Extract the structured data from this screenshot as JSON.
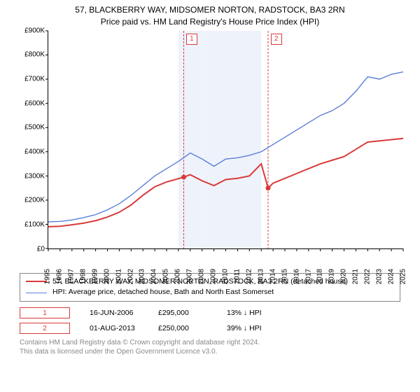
{
  "title": {
    "line1": "57, BLACKBERRY WAY, MIDSOMER NORTON, RADSTOCK, BA3 2RN",
    "line2": "Price paid vs. HM Land Registry's House Price Index (HPI)",
    "fontsize": 12,
    "color": "#000000"
  },
  "chart": {
    "type": "line",
    "background_color": "#ffffff",
    "band_color": "#eef2fb",
    "ylim": [
      0,
      900000
    ],
    "ytick_step": 100000,
    "y_labels": [
      "£0",
      "£100K",
      "£200K",
      "£300K",
      "£400K",
      "£500K",
      "£600K",
      "£700K",
      "£800K",
      "£900K"
    ],
    "x_years": [
      1995,
      1996,
      1997,
      1998,
      1999,
      2000,
      2001,
      2002,
      2003,
      2004,
      2005,
      2006,
      2007,
      2008,
      2009,
      2010,
      2011,
      2012,
      2013,
      2014,
      2015,
      2016,
      2017,
      2018,
      2019,
      2020,
      2021,
      2022,
      2023,
      2024,
      2025
    ],
    "band_years": [
      2006,
      2007,
      2008,
      2009,
      2010,
      2011,
      2012
    ],
    "marker_lines": [
      {
        "label": "1",
        "year_frac": 2006.45
      },
      {
        "label": "2",
        "year_frac": 2013.58
      }
    ],
    "series": [
      {
        "name": "57, BLACKBERRY WAY, MIDSOMER NORTON, RADSTOCK, BA3 2RN (detached house)",
        "color": "#d93a3a",
        "line_width": 2,
        "points": [
          [
            1995,
            90000
          ],
          [
            1996,
            92000
          ],
          [
            1997,
            98000
          ],
          [
            1998,
            105000
          ],
          [
            1999,
            115000
          ],
          [
            2000,
            130000
          ],
          [
            2001,
            150000
          ],
          [
            2002,
            180000
          ],
          [
            2003,
            220000
          ],
          [
            2004,
            255000
          ],
          [
            2005,
            275000
          ],
          [
            2006.45,
            295000
          ],
          [
            2007,
            305000
          ],
          [
            2008,
            280000
          ],
          [
            2009,
            260000
          ],
          [
            2010,
            285000
          ],
          [
            2011,
            290000
          ],
          [
            2012,
            300000
          ],
          [
            2013,
            350000
          ],
          [
            2013.58,
            250000
          ],
          [
            2014,
            270000
          ],
          [
            2015,
            290000
          ],
          [
            2016,
            310000
          ],
          [
            2017,
            330000
          ],
          [
            2018,
            350000
          ],
          [
            2019,
            365000
          ],
          [
            2020,
            380000
          ],
          [
            2021,
            410000
          ],
          [
            2022,
            440000
          ],
          [
            2023,
            445000
          ],
          [
            2024,
            450000
          ],
          [
            2025,
            455000
          ]
        ],
        "sale_dots": [
          [
            2006.45,
            295000
          ],
          [
            2013.58,
            250000
          ]
        ]
      },
      {
        "name": "HPI: Average price, detached house, Bath and North East Somerset",
        "color": "#5a7fd6",
        "line_width": 1.4,
        "points": [
          [
            1995,
            110000
          ],
          [
            1996,
            112000
          ],
          [
            1997,
            118000
          ],
          [
            1998,
            128000
          ],
          [
            1999,
            140000
          ],
          [
            2000,
            160000
          ],
          [
            2001,
            185000
          ],
          [
            2002,
            220000
          ],
          [
            2003,
            260000
          ],
          [
            2004,
            300000
          ],
          [
            2005,
            330000
          ],
          [
            2006,
            360000
          ],
          [
            2007,
            395000
          ],
          [
            2008,
            370000
          ],
          [
            2009,
            340000
          ],
          [
            2010,
            370000
          ],
          [
            2011,
            375000
          ],
          [
            2012,
            385000
          ],
          [
            2013,
            400000
          ],
          [
            2014,
            430000
          ],
          [
            2015,
            460000
          ],
          [
            2016,
            490000
          ],
          [
            2017,
            520000
          ],
          [
            2018,
            550000
          ],
          [
            2019,
            570000
          ],
          [
            2020,
            600000
          ],
          [
            2021,
            650000
          ],
          [
            2022,
            710000
          ],
          [
            2023,
            700000
          ],
          [
            2024,
            720000
          ],
          [
            2025,
            730000
          ]
        ]
      }
    ]
  },
  "legend": [
    {
      "color": "#d93a3a",
      "width": 2,
      "label": "57, BLACKBERRY WAY, MIDSOMER NORTON, RADSTOCK, BA3 2RN (detached house)"
    },
    {
      "color": "#5a7fd6",
      "width": 1.4,
      "label": "HPI: Average price, detached house, Bath and North East Somerset"
    }
  ],
  "sales": [
    {
      "marker": "1",
      "date": "16-JUN-2006",
      "price": "£295,000",
      "delta": "13% ↓ HPI"
    },
    {
      "marker": "2",
      "date": "01-AUG-2013",
      "price": "£250,000",
      "delta": "39% ↓ HPI"
    }
  ],
  "footer": {
    "line1": "Contains HM Land Registry data © Crown copyright and database right 2024.",
    "line2": "This data is licensed under the Open Government Licence v3.0."
  }
}
